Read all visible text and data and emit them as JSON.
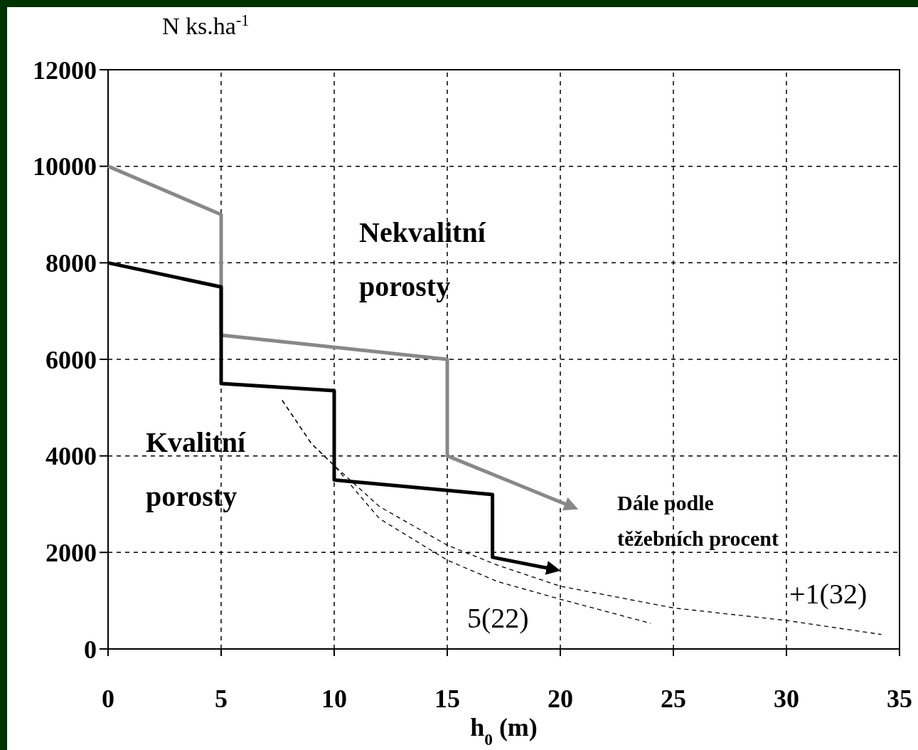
{
  "chart_data": {
    "type": "line",
    "xlabel": "h$_{0}$ (m)",
    "ylabel": "N ks.ha$^{-1}$",
    "xlim": [
      0,
      35
    ],
    "xticks": [
      0,
      5,
      10,
      15,
      20,
      25,
      30,
      35
    ],
    "ylim": [
      0,
      12000
    ],
    "yticks": [
      0,
      2000,
      4000,
      6000,
      8000,
      10000,
      12000
    ],
    "grid": true,
    "marker": "none",
    "series": [
      {
        "color": "#888888",
        "line_style": "solid",
        "x": [
          0,
          5,
          5,
          15,
          15,
          20.5
        ],
        "values": [
          10000,
          9000,
          6500,
          6000,
          4000,
          2950
        ]
      },
      {
        "color": "#000000",
        "line_style": "solid",
        "x": [
          0,
          5,
          5,
          10,
          10,
          17,
          17,
          19.7
        ],
        "values": [
          8000,
          7500,
          5500,
          5350,
          3500,
          3200,
          1900,
          1650
        ]
      },
      {
        "color": "#000000",
        "line_style": "dashed",
        "x": [
          7.7,
          9,
          10,
          12,
          15,
          17.2,
          20,
          25,
          30,
          34.2
        ],
        "values": [
          5150,
          4250,
          3800,
          2950,
          2150,
          1740,
          1300,
          850,
          590,
          300
        ]
      },
      {
        "color": "#000000",
        "line_style": "dashed",
        "x": [
          7.7,
          9,
          10,
          12,
          15,
          17.2,
          20,
          24
        ],
        "values": [
          5150,
          4250,
          3800,
          2700,
          1840,
          1400,
          1030,
          530
        ]
      }
    ],
    "annotations": [
      "Nekvalitní\nporosty",
      "Kvalitní\nporosty",
      "Dále podle\ntěžebních procent",
      "5(22)",
      "+1(32)"
    ]
  }
}
